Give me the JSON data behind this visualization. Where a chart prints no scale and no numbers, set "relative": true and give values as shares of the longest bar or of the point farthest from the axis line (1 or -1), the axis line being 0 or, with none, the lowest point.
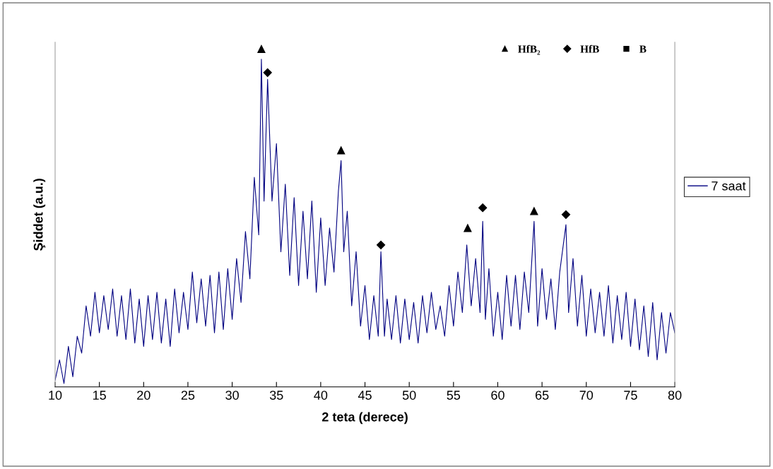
{
  "chart_data": {
    "type": "line",
    "relative": true,
    "xlabel": "2 teta (derece)",
    "ylabel": "Şiddet (a.u.)",
    "xlim": [
      10,
      80
    ],
    "xticks": [
      10,
      15,
      20,
      25,
      30,
      35,
      40,
      45,
      50,
      55,
      60,
      65,
      70,
      75,
      80
    ],
    "grid": false,
    "legend": "right",
    "tick_labels": "x",
    "series": [
      {
        "name": "7 saat",
        "color": "#000080",
        "marker": "none",
        "x": [
          10.0,
          10.5,
          11.0,
          11.5,
          12.0,
          12.5,
          13.0,
          13.5,
          14.0,
          14.5,
          15.0,
          15.5,
          16.0,
          16.5,
          17.0,
          17.5,
          18.0,
          18.5,
          19.0,
          19.5,
          20.0,
          20.5,
          21.0,
          21.5,
          22.0,
          22.5,
          23.0,
          23.5,
          24.0,
          24.5,
          25.0,
          25.5,
          26.0,
          26.5,
          27.0,
          27.5,
          28.0,
          28.5,
          29.0,
          29.5,
          30.0,
          30.5,
          31.0,
          31.5,
          32.0,
          32.5,
          33.0,
          33.3,
          33.6,
          34.0,
          34.5,
          35.0,
          35.5,
          36.0,
          36.5,
          37.0,
          37.5,
          38.0,
          38.5,
          39.0,
          39.5,
          40.0,
          40.5,
          41.0,
          41.5,
          42.0,
          42.3,
          42.6,
          43.0,
          43.5,
          44.0,
          44.5,
          45.0,
          45.5,
          46.0,
          46.5,
          46.8,
          47.2,
          47.5,
          48.0,
          48.5,
          49.0,
          49.5,
          50.0,
          50.5,
          51.0,
          51.5,
          52.0,
          52.5,
          53.0,
          53.5,
          54.0,
          54.5,
          55.0,
          55.5,
          56.0,
          56.5,
          57.0,
          57.5,
          58.0,
          58.3,
          58.6,
          59.0,
          59.5,
          60.0,
          60.5,
          61.0,
          61.5,
          62.0,
          62.5,
          63.0,
          63.5,
          64.1,
          64.5,
          65.0,
          65.5,
          66.0,
          66.5,
          67.0,
          67.7,
          68.0,
          68.5,
          69.0,
          69.5,
          70.0,
          70.5,
          71.0,
          71.5,
          72.0,
          72.5,
          73.0,
          73.5,
          74.0,
          74.5,
          75.0,
          75.5,
          76.0,
          76.5,
          77.0,
          77.5,
          78.0,
          78.5,
          79.0,
          79.5,
          80.0
        ],
        "values": [
          0.02,
          0.08,
          0.01,
          0.12,
          0.03,
          0.15,
          0.1,
          0.24,
          0.15,
          0.28,
          0.16,
          0.27,
          0.17,
          0.29,
          0.15,
          0.27,
          0.14,
          0.29,
          0.13,
          0.26,
          0.12,
          0.27,
          0.14,
          0.28,
          0.13,
          0.26,
          0.12,
          0.29,
          0.16,
          0.28,
          0.17,
          0.34,
          0.19,
          0.32,
          0.18,
          0.33,
          0.16,
          0.34,
          0.17,
          0.35,
          0.2,
          0.38,
          0.25,
          0.46,
          0.32,
          0.62,
          0.45,
          0.97,
          0.55,
          0.91,
          0.55,
          0.72,
          0.4,
          0.6,
          0.33,
          0.56,
          0.3,
          0.52,
          0.32,
          0.55,
          0.28,
          0.5,
          0.3,
          0.47,
          0.34,
          0.58,
          0.67,
          0.4,
          0.52,
          0.24,
          0.4,
          0.18,
          0.3,
          0.14,
          0.27,
          0.15,
          0.4,
          0.15,
          0.26,
          0.14,
          0.27,
          0.13,
          0.26,
          0.14,
          0.25,
          0.13,
          0.27,
          0.16,
          0.28,
          0.17,
          0.24,
          0.15,
          0.3,
          0.18,
          0.34,
          0.22,
          0.42,
          0.24,
          0.38,
          0.22,
          0.49,
          0.2,
          0.35,
          0.15,
          0.28,
          0.14,
          0.33,
          0.18,
          0.33,
          0.17,
          0.34,
          0.22,
          0.49,
          0.18,
          0.35,
          0.2,
          0.32,
          0.17,
          0.34,
          0.48,
          0.22,
          0.38,
          0.18,
          0.33,
          0.15,
          0.29,
          0.16,
          0.28,
          0.15,
          0.3,
          0.13,
          0.27,
          0.14,
          0.28,
          0.12,
          0.26,
          0.11,
          0.24,
          0.09,
          0.25,
          0.08,
          0.22,
          0.1,
          0.22,
          0.16
        ]
      },
      {
        "name": "HfB₂",
        "type": "scatter",
        "color": "#000000",
        "marker": "triangle",
        "x": [
          33.3,
          42.3,
          56.6,
          64.1
        ],
        "values": [
          1.0,
          0.7,
          0.47,
          0.52
        ]
      },
      {
        "name": "HfB",
        "type": "scatter",
        "color": "#000000",
        "marker": "diamond",
        "x": [
          34.0,
          46.8,
          58.3,
          67.7
        ],
        "values": [
          0.93,
          0.42,
          0.53,
          0.51
        ]
      },
      {
        "name": "B",
        "type": "scatter",
        "color": "#000000",
        "marker": "square"
      }
    ]
  }
}
